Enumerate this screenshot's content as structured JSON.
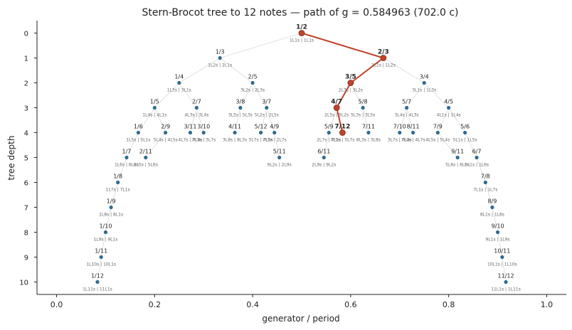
{
  "chart_data": {
    "type": "scatter",
    "title": "Stern-Brocot tree to 12 notes   —   path of g = 0.584963 (702.0 c)",
    "xlabel": "generator / period",
    "ylabel": "tree depth",
    "xlim": [
      -0.04,
      1.04
    ],
    "ylim": [
      10.5,
      -0.5
    ],
    "xticks": [
      0.0,
      0.2,
      0.4,
      0.6,
      0.8,
      1.0
    ],
    "xtick_labels": [
      "0.0",
      "0.2",
      "0.4",
      "0.6",
      "0.8",
      "1.0"
    ],
    "yticks": [
      0,
      1,
      2,
      3,
      4,
      5,
      6,
      7,
      8,
      9,
      10
    ],
    "ytick_labels": [
      "0",
      "1",
      "2",
      "3",
      "4",
      "5",
      "6",
      "7",
      "8",
      "9",
      "10"
    ],
    "grid": false,
    "colors": {
      "node": "#2f6b8e",
      "path": "#c0432a",
      "edge": "#cccccc",
      "text": "#222222",
      "mos_label": "#666666"
    },
    "nodes": [
      {
        "frac": "1/2",
        "x": 0.5,
        "depth": 0,
        "mos": "1L1s | 1L1s",
        "on_path": true
      },
      {
        "frac": "1/3",
        "x": 0.333333,
        "depth": 1,
        "mos": "1L2s | 2L1s",
        "on_path": false
      },
      {
        "frac": "2/3",
        "x": 0.666667,
        "depth": 1,
        "mos": "2L1s | 1L2s",
        "on_path": true
      },
      {
        "frac": "1/4",
        "x": 0.25,
        "depth": 2,
        "mos": "1L3s | 3L1s",
        "on_path": false
      },
      {
        "frac": "2/5",
        "x": 0.4,
        "depth": 2,
        "mos": "3L2s | 2L3s",
        "on_path": false
      },
      {
        "frac": "3/5",
        "x": 0.6,
        "depth": 2,
        "mos": "2L3s | 3L2s",
        "on_path": true
      },
      {
        "frac": "3/4",
        "x": 0.75,
        "depth": 2,
        "mos": "3L1s | 1L3s",
        "on_path": false
      },
      {
        "frac": "1/5",
        "x": 0.2,
        "depth": 3,
        "mos": "1L4s | 4L1s",
        "on_path": false
      },
      {
        "frac": "2/7",
        "x": 0.285714,
        "depth": 3,
        "mos": "4L3s | 3L4s",
        "on_path": false
      },
      {
        "frac": "3/8",
        "x": 0.375,
        "depth": 3,
        "mos": "3L5s | 5L3s",
        "on_path": false
      },
      {
        "frac": "3/7",
        "x": 0.428571,
        "depth": 3,
        "mos": "5L2s | 2L5s",
        "on_path": false
      },
      {
        "frac": "4/7",
        "x": 0.571429,
        "depth": 3,
        "mos": "2L5s | 5L2s",
        "on_path": true
      },
      {
        "frac": "5/8",
        "x": 0.625,
        "depth": 3,
        "mos": "5L3s | 3L5s",
        "on_path": false
      },
      {
        "frac": "5/7",
        "x": 0.714286,
        "depth": 3,
        "mos": "3L4s | 4L3s",
        "on_path": false
      },
      {
        "frac": "4/5",
        "x": 0.8,
        "depth": 3,
        "mos": "4L1s | 1L4s",
        "on_path": false
      },
      {
        "frac": "1/6",
        "x": 0.166667,
        "depth": 4,
        "mos": "1L5s | 5L1s",
        "on_path": false
      },
      {
        "frac": "2/9",
        "x": 0.222222,
        "depth": 4,
        "mos": "5L4s | 4L5s",
        "on_path": false
      },
      {
        "frac": "3/11",
        "x": 0.272727,
        "depth": 4,
        "mos": "4L7s | 7L4s",
        "on_path": false
      },
      {
        "frac": "3/10",
        "x": 0.3,
        "depth": 4,
        "mos": "7L3s | 3L7s",
        "on_path": false
      },
      {
        "frac": "4/11",
        "x": 0.363636,
        "depth": 4,
        "mos": "3L8s | 8L3s",
        "on_path": false
      },
      {
        "frac": "5/12",
        "x": 0.416667,
        "depth": 4,
        "mos": "5L7s | 7L5s",
        "on_path": false
      },
      {
        "frac": "4/9",
        "x": 0.444444,
        "depth": 4,
        "mos": "7L2s | 2L7s",
        "on_path": false
      },
      {
        "frac": "5/9",
        "x": 0.555556,
        "depth": 4,
        "mos": "2L7s | 7L2s",
        "on_path": false
      },
      {
        "frac": "7/12",
        "x": 0.583333,
        "depth": 4,
        "mos": "7L5s | 5L7s",
        "on_path": true
      },
      {
        "frac": "7/11",
        "x": 0.636364,
        "depth": 4,
        "mos": "8L3s | 3L8s",
        "on_path": false
      },
      {
        "frac": "7/10",
        "x": 0.7,
        "depth": 4,
        "mos": "3L7s | 7L3s",
        "on_path": false
      },
      {
        "frac": "8/11",
        "x": 0.727273,
        "depth": 4,
        "mos": "7L4s | 4L7s",
        "on_path": false
      },
      {
        "frac": "7/9",
        "x": 0.777778,
        "depth": 4,
        "mos": "4L5s | 5L4s",
        "on_path": false
      },
      {
        "frac": "5/6",
        "x": 0.833333,
        "depth": 4,
        "mos": "5L1s | 1L5s",
        "on_path": false
      },
      {
        "frac": "1/7",
        "x": 0.142857,
        "depth": 5,
        "mos": "1L6s | 6L1s",
        "on_path": false
      },
      {
        "frac": "2/11",
        "x": 0.181818,
        "depth": 5,
        "mos": "6L5s | 5L6s",
        "on_path": false
      },
      {
        "frac": "5/11",
        "x": 0.454545,
        "depth": 5,
        "mos": "9L2s | 2L9s",
        "on_path": false
      },
      {
        "frac": "6/11",
        "x": 0.545455,
        "depth": 5,
        "mos": "2L9s | 9L2s",
        "on_path": false
      },
      {
        "frac": "9/11",
        "x": 0.818182,
        "depth": 5,
        "mos": "5L6s | 6L5s",
        "on_path": false
      },
      {
        "frac": "6/7",
        "x": 0.857143,
        "depth": 5,
        "mos": "6L1s | 1L6s",
        "on_path": false
      },
      {
        "frac": "1/8",
        "x": 0.125,
        "depth": 6,
        "mos": "1L7s | 7L1s",
        "on_path": false
      },
      {
        "frac": "7/8",
        "x": 0.875,
        "depth": 6,
        "mos": "7L1s | 1L7s",
        "on_path": false
      },
      {
        "frac": "1/9",
        "x": 0.111111,
        "depth": 7,
        "mos": "1L8s | 8L1s",
        "on_path": false
      },
      {
        "frac": "8/9",
        "x": 0.888889,
        "depth": 7,
        "mos": "8L1s | 1L8s",
        "on_path": false
      },
      {
        "frac": "1/10",
        "x": 0.1,
        "depth": 8,
        "mos": "1L9s | 9L1s",
        "on_path": false
      },
      {
        "frac": "9/10",
        "x": 0.9,
        "depth": 8,
        "mos": "9L1s | 1L9s",
        "on_path": false
      },
      {
        "frac": "1/11",
        "x": 0.090909,
        "depth": 9,
        "mos": "1L10s | 10L1s",
        "on_path": false
      },
      {
        "frac": "10/11",
        "x": 0.909091,
        "depth": 9,
        "mos": "10L1s | 1L10s",
        "on_path": false
      },
      {
        "frac": "1/12",
        "x": 0.083333,
        "depth": 10,
        "mos": "1L11s | 11L1s",
        "on_path": false
      },
      {
        "frac": "11/12",
        "x": 0.916667,
        "depth": 10,
        "mos": "11L1s | 1L11s",
        "on_path": false
      }
    ],
    "edges": [
      [
        "1/2",
        "1/3"
      ],
      [
        "1/2",
        "2/3"
      ],
      [
        "1/3",
        "1/4"
      ],
      [
        "1/3",
        "2/5"
      ],
      [
        "2/3",
        "3/5"
      ],
      [
        "2/3",
        "3/4"
      ],
      [
        "1/4",
        "1/5"
      ],
      [
        "1/4",
        "2/7"
      ],
      [
        "2/5",
        "3/8"
      ],
      [
        "2/5",
        "3/7"
      ],
      [
        "3/5",
        "4/7"
      ],
      [
        "3/5",
        "5/8"
      ],
      [
        "3/4",
        "5/7"
      ],
      [
        "3/4",
        "4/5"
      ],
      [
        "1/5",
        "1/6"
      ],
      [
        "1/5",
        "2/9"
      ],
      [
        "2/7",
        "3/11"
      ],
      [
        "2/7",
        "3/10"
      ],
      [
        "3/8",
        "4/11"
      ],
      [
        "3/7",
        "5/12"
      ],
      [
        "3/7",
        "4/9"
      ],
      [
        "4/7",
        "5/9"
      ],
      [
        "4/7",
        "7/12"
      ],
      [
        "5/8",
        "7/11"
      ],
      [
        "5/7",
        "7/10"
      ],
      [
        "5/7",
        "8/11"
      ],
      [
        "4/5",
        "7/9"
      ],
      [
        "4/5",
        "5/6"
      ],
      [
        "1/6",
        "1/7"
      ],
      [
        "2/9",
        "2/11"
      ],
      [
        "4/9",
        "5/11"
      ],
      [
        "5/9",
        "6/11"
      ],
      [
        "7/9",
        "9/11"
      ],
      [
        "5/6",
        "6/7"
      ],
      [
        "1/7",
        "1/8"
      ],
      [
        "6/7",
        "7/8"
      ],
      [
        "1/8",
        "1/9"
      ],
      [
        "7/8",
        "8/9"
      ],
      [
        "1/9",
        "1/10"
      ],
      [
        "8/9",
        "9/10"
      ],
      [
        "1/10",
        "1/11"
      ],
      [
        "9/10",
        "10/11"
      ],
      [
        "1/11",
        "1/12"
      ],
      [
        "10/11",
        "11/12"
      ]
    ],
    "path": [
      "1/2",
      "2/3",
      "3/5",
      "4/7",
      "7/12"
    ]
  }
}
